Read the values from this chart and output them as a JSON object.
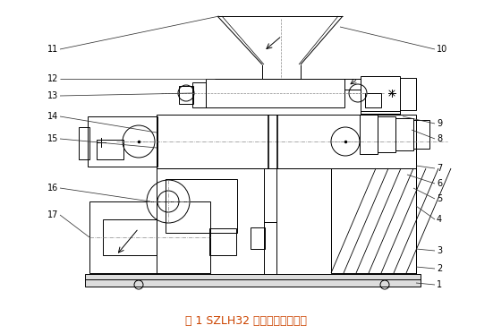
{
  "title": "图 1 SZLH32 颗粒压制机示意图",
  "title_color": "#cc4400",
  "title_fontsize": 9,
  "bg_color": "#ffffff",
  "line_color": "#000000",
  "lw": 0.7
}
